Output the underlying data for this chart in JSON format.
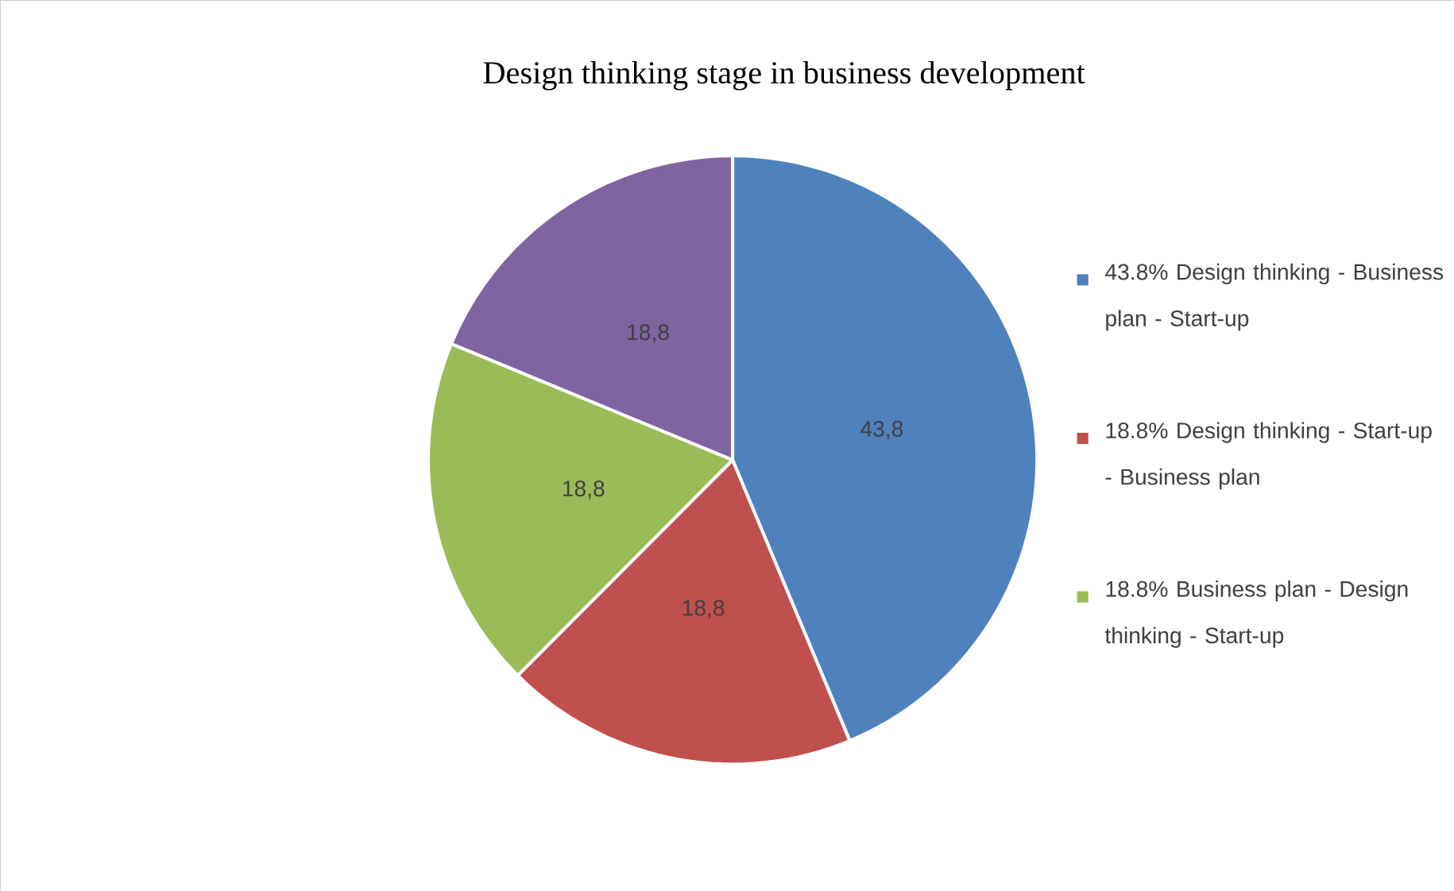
{
  "chart_data": {
    "type": "pie",
    "title": "Design thinking stage in business development",
    "categories": [
      "43.8% Design thinking - Business plan - Start-up",
      "18.8% Design thinking - Start-up - Business plan",
      "18.8% Business plan - Design thinking - Start-up",
      null
    ],
    "values": [
      43.8,
      18.8,
      18.8,
      18.8
    ],
    "value_labels": [
      "43,8",
      "18,8",
      "18,8",
      "18,8"
    ],
    "colors": [
      "#4f81bd",
      "#c0504d",
      "#9bbb59",
      "#8064a2"
    ],
    "legend": "right"
  }
}
